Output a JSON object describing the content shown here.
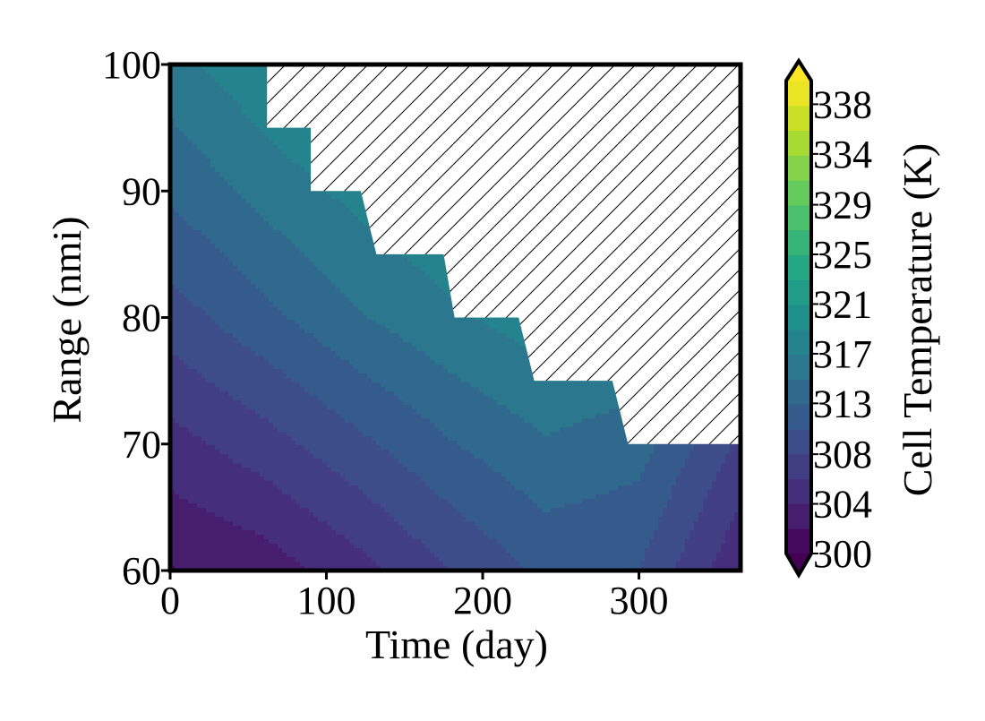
{
  "chart_data": {
    "type": "heatmap",
    "subtype": "filled-contour",
    "title": "",
    "xlabel": "Time (day)",
    "ylabel": "Range (nmi)",
    "xlim": [
      0,
      365
    ],
    "ylim": [
      60,
      100
    ],
    "x_ticks": [
      0,
      100,
      200,
      300
    ],
    "y_ticks": [
      60,
      70,
      80,
      90,
      100
    ],
    "colorbar": {
      "label": "Cell Temperature (K)",
      "colormap": "viridis",
      "extend": "both",
      "tick_labels": [
        "300",
        "304",
        "308",
        "313",
        "317",
        "321",
        "325",
        "329",
        "334",
        "338"
      ],
      "tick_values": [
        300,
        304.2,
        308.4,
        312.7,
        316.9,
        321.1,
        325.3,
        329.5,
        333.8,
        338
      ],
      "range": [
        300,
        340
      ],
      "levels": 19
    },
    "contour_grid": {
      "x": [
        0,
        60,
        120,
        180,
        240,
        300,
        365
      ],
      "y": [
        60,
        70,
        80,
        90,
        100
      ],
      "z": [
        [
          302.0,
          303.0,
          305.5,
          308.5,
          311.0,
          310.5,
          304.5
        ],
        [
          305.5,
          307.5,
          310.0,
          312.5,
          314.5,
          313.5,
          308.0
        ],
        [
          309.5,
          312.0,
          314.5,
          316.5,
          318.0,
          317.0,
          312.0
        ],
        [
          313.0,
          315.5,
          317.5,
          319.0,
          320.0,
          319.0,
          315.0
        ],
        [
          316.0,
          318.5,
          320.5,
          321.5,
          322.0,
          321.0,
          317.0
        ]
      ]
    },
    "infeasible_boundary": {
      "description": "hatched region above the stepped boundary",
      "steps": [
        {
          "x": [
            0,
            62
          ],
          "y_max": 100
        },
        {
          "x": [
            62,
            70
          ],
          "y_max": 95
        },
        {
          "x": [
            70,
            90
          ],
          "y_max": 95
        },
        {
          "x": [
            90,
            122
          ],
          "y_max": 90
        },
        {
          "x": [
            132,
            175
          ],
          "y_max": 85
        },
        {
          "x": [
            182,
            223
          ],
          "y_max": 80
        },
        {
          "x": [
            233,
            283
          ],
          "y_max": 75
        },
        {
          "x": [
            293,
            365
          ],
          "y_max": 70
        }
      ]
    },
    "grid": false,
    "legend": "none"
  }
}
